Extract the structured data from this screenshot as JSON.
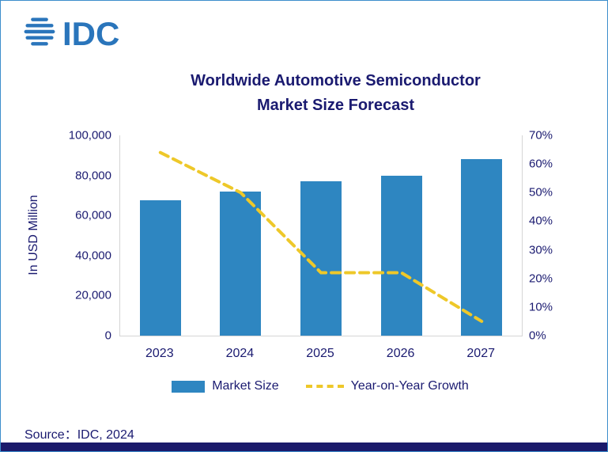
{
  "logo": {
    "text": "IDC",
    "icon": "globe-icon"
  },
  "title": {
    "line1": "Worldwide Automotive Semiconductor",
    "line2": "Market Size Forecast"
  },
  "chart_data": {
    "type": "bar",
    "categories": [
      "2023",
      "2024",
      "2025",
      "2026",
      "2027"
    ],
    "series": [
      {
        "name": "Market Size",
        "type": "bar",
        "axis": "left",
        "values": [
          67500,
          72000,
          77000,
          80000,
          88000
        ],
        "color": "#2e86c1"
      },
      {
        "name": "Year-on-Year Growth",
        "type": "line",
        "style": "dashed",
        "axis": "right",
        "unit": "%",
        "values": [
          64,
          50,
          22,
          22,
          5
        ],
        "color": "#eec829"
      }
    ],
    "left_axis": {
      "label": "In USD Million",
      "min": 0,
      "max": 100000,
      "ticks": [
        "100,000",
        "80,000",
        "60,000",
        "40,000",
        "20,000",
        "0"
      ]
    },
    "right_axis": {
      "min": 0,
      "max": 70,
      "ticks": [
        "70%",
        "60%",
        "50%",
        "40%",
        "30%",
        "20%",
        "10%",
        "0%"
      ]
    },
    "grid": false,
    "legend_position": "bottom",
    "legend": [
      "Market Size",
      "Year-on-Year Growth"
    ]
  },
  "source": {
    "text": "Source：IDC, 2024"
  }
}
